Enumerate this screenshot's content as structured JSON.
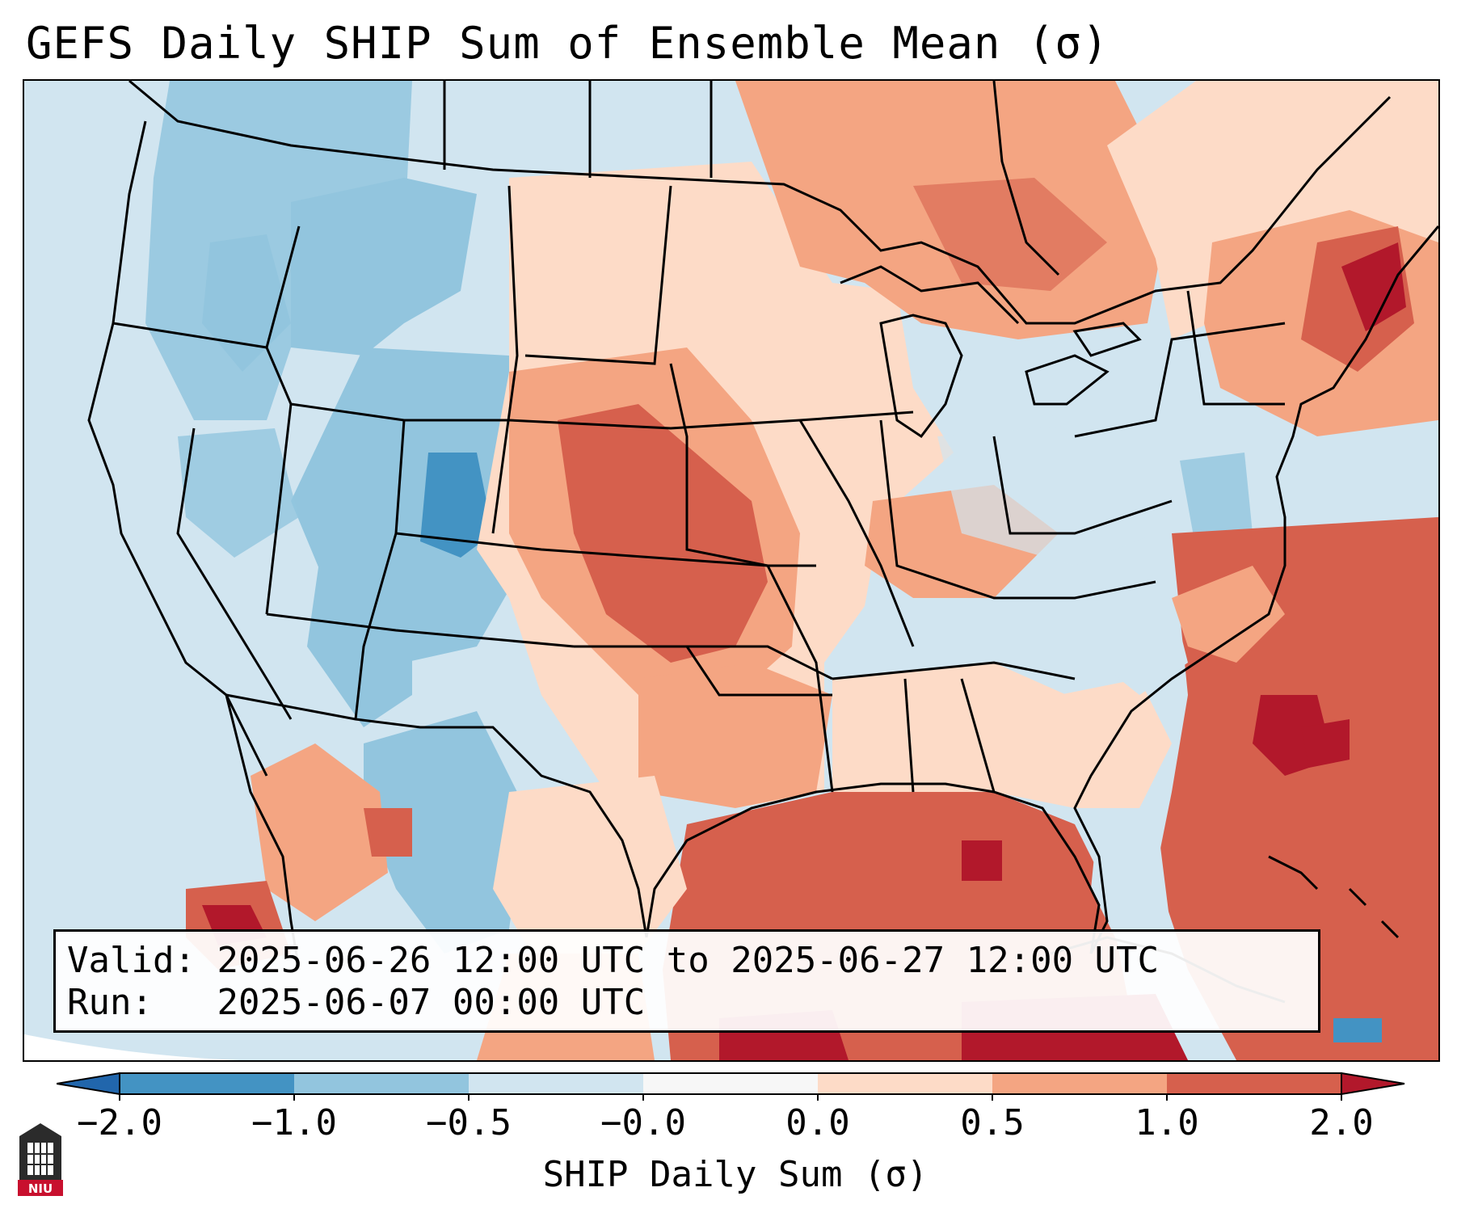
{
  "title": "GEFS Daily SHIP Sum of Ensemble Mean (σ)",
  "info": {
    "valid_label": "Valid:",
    "valid_value": "2025-06-26 12:00 UTC to 2025-06-27 12:00 UTC",
    "run_label": "Run:",
    "run_value": "2025-06-07 00:00 UTC"
  },
  "colorbar": {
    "label": "SHIP Daily Sum (σ)",
    "ticks": [
      "−2.0",
      "−1.0",
      "−0.5",
      "−0.0",
      "0.0",
      "0.5",
      "1.0",
      "2.0"
    ],
    "colors": [
      "#4393c3",
      "#92c5de",
      "#d1e5f0",
      "#f7f7f7",
      "#fddbc7",
      "#f4a582",
      "#d6604d"
    ],
    "under_color": "#2166ac",
    "over_color": "#b2182b"
  },
  "logo": {
    "text": "NIU",
    "icon": "niu-logo-icon"
  }
}
